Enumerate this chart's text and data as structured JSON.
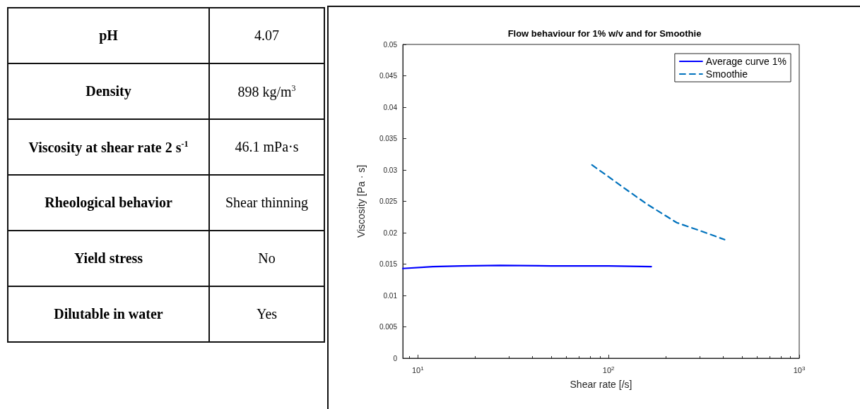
{
  "chart_data": [
    {
      "type": "other",
      "annotations": [
        "pH",
        "4.07",
        "Density",
        "898 kg/m$^{3}$",
        "Viscosity at shear rate 2 s$^{-1}$",
        "46.1 mPa·s",
        "Rheological behavior",
        "Shear thinning",
        "Yield stress",
        "No",
        "Dilutable in water",
        "Yes"
      ]
    },
    {
      "type": "line",
      "title": "Flow behaviour for 1% w/v and for Smoothie",
      "xlabel": "Shear rate [/s]",
      "ylabel": "Viscosity [Pa · s]",
      "log": "x",
      "xlim": [
        8.34,
        1000
      ],
      "xticks": [
        {
          "value": 10,
          "label": "10$^{1}$"
        },
        {
          "value": 100,
          "label": "10$^{2}$"
        },
        {
          "value": 1000,
          "label": "10$^{3}$"
        }
      ],
      "ylim": [
        0,
        0.05
      ],
      "yticks": [
        0,
        0.005,
        0.01,
        0.015,
        0.02,
        0.025,
        0.03,
        0.035,
        0.04,
        0.045,
        0.05
      ],
      "grid": false,
      "legend": "top right",
      "series": [
        {
          "name": "Average curve 1%",
          "color": "#0000ff",
          "line_style": "solid",
          "x": [
            8.34,
            12,
            17,
            27,
            50,
            100,
            167.6
          ],
          "values": [
            0.0143,
            0.0146,
            0.0147,
            0.0148,
            0.0147,
            0.0147,
            0.0146
          ]
        },
        {
          "name": "Smoothie",
          "color": "#0072bd",
          "line_style": "dashed",
          "x": [
            81.9,
            129,
            160,
            228,
            303,
            406
          ],
          "values": [
            0.0308,
            0.0265,
            0.0245,
            0.0216,
            0.0203,
            0.0189
          ]
        }
      ]
    }
  ]
}
